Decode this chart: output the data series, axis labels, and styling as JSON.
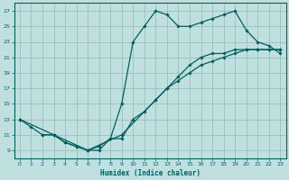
{
  "xlabel": "Humidex (Indice chaleur)",
  "bg_color": "#c0e0e0",
  "grid_color": "#90b8b8",
  "line_color": "#006060",
  "xlim": [
    -0.5,
    23.5
  ],
  "ylim": [
    8.0,
    28.0
  ],
  "xticks": [
    0,
    1,
    2,
    3,
    4,
    5,
    6,
    7,
    8,
    9,
    10,
    11,
    12,
    13,
    14,
    15,
    16,
    17,
    18,
    19,
    20,
    21,
    22,
    23
  ],
  "yticks": [
    9,
    11,
    13,
    15,
    17,
    19,
    21,
    23,
    25,
    27
  ],
  "line1_x": [
    0,
    1,
    2,
    3,
    4,
    5,
    6,
    7,
    8,
    9,
    10,
    11,
    12,
    13,
    14,
    15,
    16,
    17,
    18,
    19,
    20,
    21,
    22,
    23
  ],
  "line1_y": [
    13,
    12,
    11,
    11,
    10,
    9.5,
    9,
    9.5,
    10.5,
    15,
    23,
    25,
    27,
    26.5,
    25,
    25,
    25.5,
    26,
    26.5,
    27,
    24.5,
    23,
    22.5,
    21.5
  ],
  "line2_x": [
    2,
    3,
    4,
    5,
    6,
    7,
    8,
    9,
    10,
    11,
    12,
    13,
    14,
    15,
    16,
    17,
    18,
    19,
    20,
    21,
    22,
    23
  ],
  "line2_y": [
    11,
    11,
    10,
    9.5,
    9,
    9,
    10.5,
    10.5,
    13,
    14,
    15.5,
    17,
    18.5,
    20,
    21,
    21.5,
    21.5,
    22,
    22,
    22,
    22,
    22
  ],
  "line3_x": [
    0,
    3,
    6,
    9,
    12,
    13,
    14,
    15,
    16,
    17,
    18,
    19,
    20,
    21,
    22,
    23
  ],
  "line3_y": [
    13,
    11,
    9,
    11,
    15.5,
    17,
    18,
    19,
    20,
    20.5,
    21,
    21.5,
    22,
    22,
    22,
    22
  ]
}
